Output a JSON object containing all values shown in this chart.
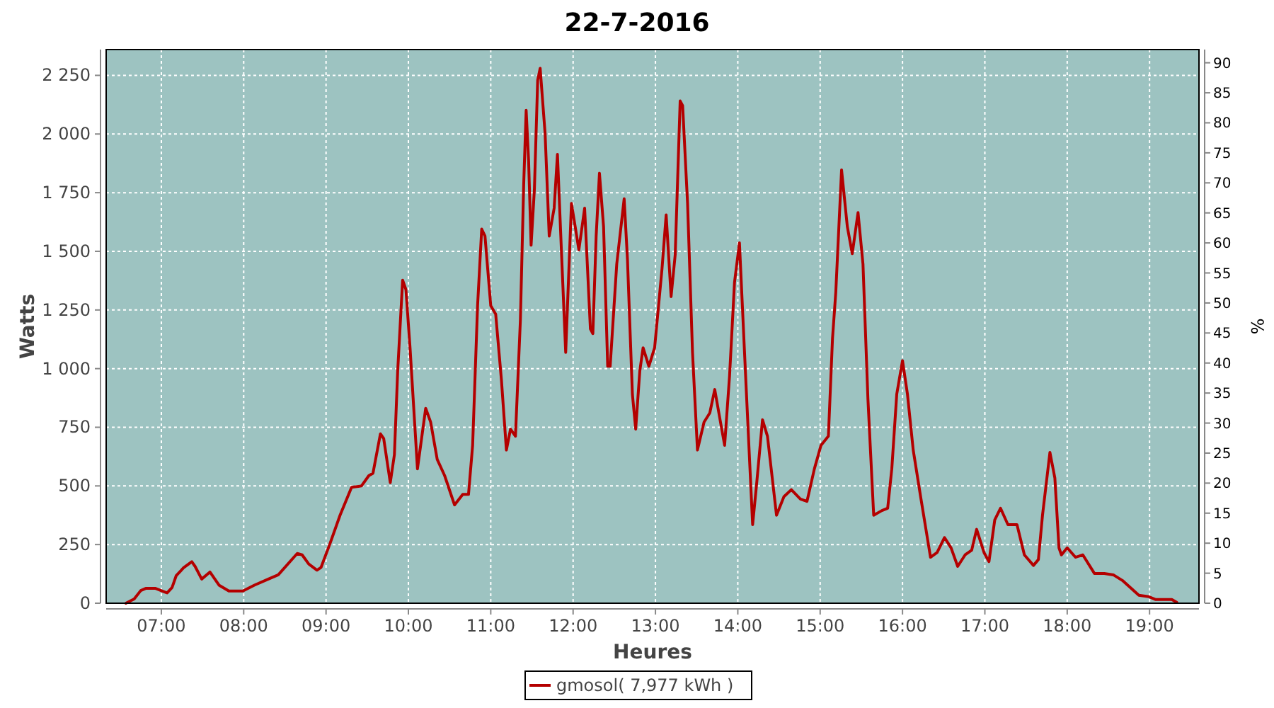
{
  "chart_data": {
    "type": "line",
    "title": "22-7-2016",
    "xlabel": "Heures",
    "ylabel": "Watts",
    "y2label": "%",
    "xlim": [
      6.33,
      19.6
    ],
    "xticks": [
      {
        "value": 7,
        "label": "07:00"
      },
      {
        "value": 8,
        "label": "08:00"
      },
      {
        "value": 9,
        "label": "09:00"
      },
      {
        "value": 10,
        "label": "10:00"
      },
      {
        "value": 11,
        "label": "11:00"
      },
      {
        "value": 12,
        "label": "12:00"
      },
      {
        "value": 13,
        "label": "13:00"
      },
      {
        "value": 14,
        "label": "14:00"
      },
      {
        "value": 15,
        "label": "15:00"
      },
      {
        "value": 16,
        "label": "16:00"
      },
      {
        "value": 17,
        "label": "17:00"
      },
      {
        "value": 18,
        "label": "18:00"
      },
      {
        "value": 19,
        "label": "19:00"
      }
    ],
    "ylim": [
      0,
      2360
    ],
    "yticks": [
      0,
      250,
      500,
      750,
      {
        "value": 1000,
        "label": "1 000"
      },
      {
        "value": 1250,
        "label": "1 250"
      },
      {
        "value": 1500,
        "label": "1 500"
      },
      {
        "value": 1750,
        "label": "1 750"
      },
      {
        "value": 2000,
        "label": "2 000"
      },
      {
        "value": 2250,
        "label": "2 250"
      }
    ],
    "y2lim": [
      0,
      92.2
    ],
    "y2ticks": [
      0,
      5,
      10,
      15,
      20,
      25,
      30,
      35,
      40,
      45,
      50,
      55,
      60,
      65,
      70,
      75,
      80,
      85,
      90
    ],
    "grid": true,
    "legend": "bottom",
    "line_style": "solid",
    "marker": "none",
    "series": [
      {
        "name": "gmosol( 7,977 kWh )",
        "color": "#b40000",
        "x": [
          6.57,
          6.67,
          6.75,
          6.81,
          6.93,
          7.04,
          7.07,
          7.13,
          7.18,
          7.27,
          7.37,
          7.41,
          7.49,
          7.59,
          7.7,
          7.82,
          7.99,
          8.13,
          8.3,
          8.42,
          8.65,
          8.71,
          8.79,
          8.89,
          8.94,
          9.05,
          9.17,
          9.31,
          9.43,
          9.52,
          9.57,
          9.66,
          9.7,
          9.78,
          9.83,
          9.87,
          9.93,
          9.97,
          10.02,
          10.11,
          10.21,
          10.27,
          10.35,
          10.44,
          10.56,
          10.66,
          10.73,
          10.78,
          10.84,
          10.89,
          10.93,
          11.0,
          11.06,
          11.13,
          11.19,
          11.24,
          11.3,
          11.36,
          11.4,
          11.43,
          11.46,
          11.49,
          11.53,
          11.57,
          11.6,
          11.66,
          11.71,
          11.77,
          11.81,
          11.86,
          11.91,
          11.98,
          12.03,
          12.07,
          12.14,
          12.21,
          12.24,
          12.28,
          12.32,
          12.37,
          12.42,
          12.45,
          12.53,
          12.62,
          12.66,
          12.72,
          12.76,
          12.81,
          12.85,
          12.92,
          12.99,
          13.08,
          13.13,
          13.19,
          13.24,
          13.3,
          13.33,
          13.39,
          13.45,
          13.51,
          13.59,
          13.66,
          13.72,
          13.77,
          13.84,
          13.9,
          13.96,
          14.02,
          14.1,
          14.18,
          14.23,
          14.3,
          14.36,
          14.47,
          14.56,
          14.65,
          14.76,
          14.84,
          14.93,
          15.01,
          15.1,
          15.15,
          15.19,
          15.26,
          15.33,
          15.39,
          15.46,
          15.52,
          15.58,
          15.65,
          15.75,
          15.82,
          15.87,
          15.93,
          16.0,
          16.06,
          16.13,
          16.22,
          16.34,
          16.42,
          16.51,
          16.59,
          16.67,
          16.76,
          16.84,
          16.9,
          16.99,
          17.05,
          17.12,
          17.19,
          17.28,
          17.39,
          17.48,
          17.59,
          17.65,
          17.7,
          17.79,
          17.85,
          17.9,
          17.93,
          18.0,
          18.1,
          18.19,
          18.33,
          18.45,
          18.56,
          18.67,
          18.87,
          18.99,
          19.07,
          19.27,
          19.33
        ],
        "values": [
          0,
          18,
          54,
          63,
          63,
          48,
          44,
          67,
          117,
          151,
          177,
          157,
          103,
          133,
          77,
          52,
          52,
          77,
          103,
          121,
          212,
          206,
          167,
          141,
          153,
          256,
          375,
          494,
          500,
          544,
          554,
          722,
          702,
          514,
          633,
          990,
          1377,
          1337,
          1089,
          573,
          831,
          772,
          613,
          544,
          419,
          464,
          464,
          673,
          1268,
          1595,
          1565,
          1268,
          1232,
          950,
          653,
          742,
          712,
          1208,
          1784,
          2101,
          1883,
          1526,
          1764,
          2230,
          2280,
          2002,
          1565,
          1684,
          1913,
          1486,
          1069,
          1704,
          1595,
          1506,
          1684,
          1169,
          1149,
          1565,
          1833,
          1605,
          1010,
          1010,
          1446,
          1724,
          1466,
          891,
          742,
          990,
          1089,
          1010,
          1089,
          1427,
          1655,
          1307,
          1486,
          2141,
          2121,
          1704,
          1069,
          653,
          772,
          811,
          911,
          811,
          673,
          970,
          1367,
          1536,
          930,
          335,
          514,
          782,
          712,
          375,
          454,
          484,
          444,
          434,
          573,
          673,
          712,
          1129,
          1327,
          1847,
          1605,
          1490,
          1665,
          1446,
          871,
          375,
          395,
          405,
          573,
          891,
          1034,
          891,
          653,
          454,
          196,
          216,
          280,
          236,
          157,
          206,
          226,
          315,
          216,
          177,
          355,
          405,
          335,
          335,
          206,
          161,
          186,
          375,
          643,
          534,
          236,
          206,
          236,
          196,
          206,
          127,
          127,
          121,
          97,
          34,
          28,
          16,
          16,
          4
        ]
      }
    ]
  }
}
